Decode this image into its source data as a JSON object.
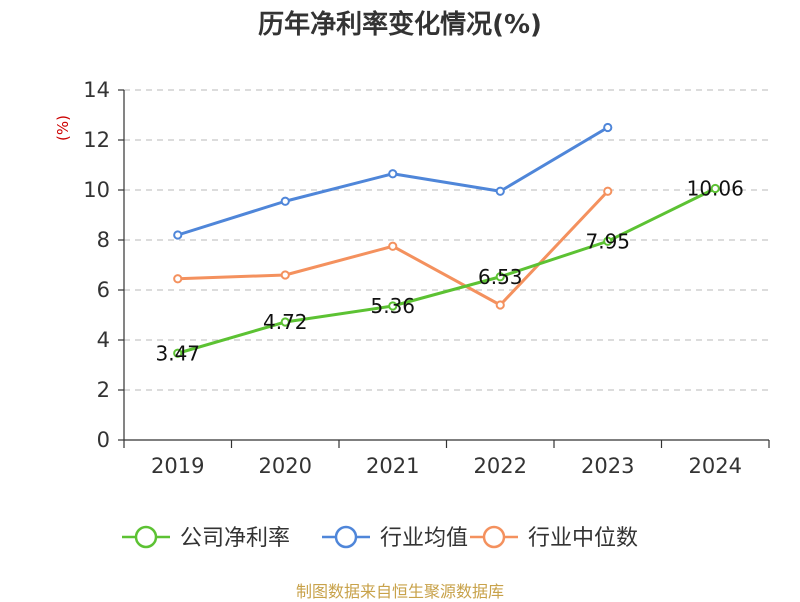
{
  "chart_data": {
    "type": "line",
    "title": "历年净利率变化情况(%)",
    "ylabel": "(%)",
    "xlabel": "",
    "categories": [
      "2019",
      "2020",
      "2021",
      "2022",
      "2023",
      "2024"
    ],
    "ylim": [
      0,
      14
    ],
    "yticks": [
      0,
      2,
      4,
      6,
      8,
      10,
      12,
      14
    ],
    "grid": true,
    "legend_position": "bottom",
    "series": [
      {
        "name": "公司净利率",
        "color": "#5cc233",
        "labeled": true,
        "values": [
          3.47,
          4.72,
          5.36,
          6.53,
          7.95,
          10.06
        ],
        "labels": [
          "3.47",
          "4.72",
          "5.36",
          "6.53",
          "7.95",
          "10.06"
        ]
      },
      {
        "name": "行业均值",
        "color": "#4f86d9",
        "labeled": false,
        "values": [
          8.2,
          9.55,
          10.65,
          9.95,
          12.5,
          null
        ]
      },
      {
        "name": "行业中位数",
        "color": "#f4915e",
        "labeled": false,
        "values": [
          6.45,
          6.6,
          7.75,
          5.4,
          9.95,
          null
        ]
      }
    ]
  },
  "source_note": "制图数据来自恒生聚源数据库"
}
